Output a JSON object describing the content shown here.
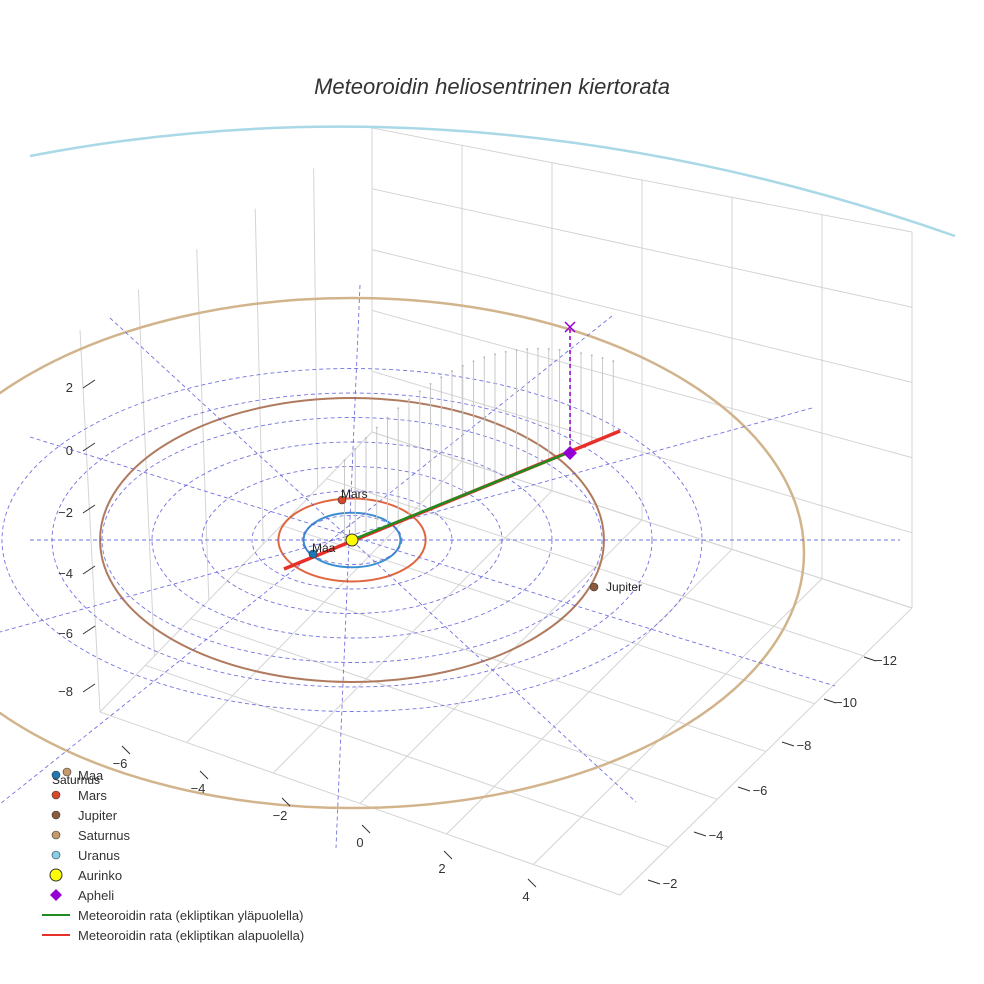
{
  "chart_data": {
    "type": "3d-scatter-line",
    "title": "Meteoroidin heliosentrinen kiertorata",
    "x_ticks": [
      -12,
      -10,
      -8,
      -6,
      -4,
      -2
    ],
    "y_ticks": [
      -6,
      -4,
      -2,
      0,
      2,
      4
    ],
    "z_ticks": [
      -8,
      -6,
      -4,
      -2,
      0,
      2
    ],
    "planets": [
      {
        "name": "Maa",
        "color": "#1f77b4",
        "orbit_radius_au": 1.0,
        "orbit_color": "#3b8fd0",
        "labeled": true
      },
      {
        "name": "Mars",
        "color": "#d9472b",
        "orbit_radius_au": 1.52,
        "orbit_color": "#e0663f",
        "labeled": true
      },
      {
        "name": "Jupiter",
        "color": "#8c5a3c",
        "orbit_radius_au": 5.2,
        "orbit_color": "#b07a5e",
        "labeled": true
      },
      {
        "name": "Saturnus",
        "color": "#c49a6c",
        "orbit_radius_au": 9.58,
        "orbit_color": "#d2b48c",
        "labeled": false
      },
      {
        "name": "Uranus",
        "color": "#87ceeb",
        "orbit_radius_au": 19.2,
        "orbit_color": "#a9d8e6",
        "labeled": false
      }
    ],
    "sun": {
      "name": "Aurinko",
      "color": "#ffff00"
    },
    "aphelion": {
      "name": "Apheli",
      "color": "#9400d3",
      "x": 5.2,
      "y": 0.0,
      "z": 0.0
    },
    "meteoroid_path": [
      {
        "name": "Meteoroidin rata (ekliptikan yläpuolella)",
        "color": "#1e8c1e"
      },
      {
        "name": "Meteoroidin rata (ekliptikan alapuolella)",
        "color": "#e8302a"
      }
    ]
  },
  "labels": {
    "maa": "Maa",
    "mars": "Mars",
    "jupiter": "Jupiter",
    "saturnus": "Saturnus"
  },
  "legend": [
    {
      "key": "maa",
      "label": "Maa",
      "symbol": "dot",
      "color": "#1f77b4"
    },
    {
      "key": "mars",
      "label": "Mars",
      "symbol": "dot",
      "color": "#d9472b"
    },
    {
      "key": "jupiter",
      "label": "Jupiter",
      "symbol": "dot",
      "color": "#8c5a3c"
    },
    {
      "key": "saturnus",
      "label": "Saturnus",
      "symbol": "dot",
      "color": "#c49a6c"
    },
    {
      "key": "uranus",
      "label": "Uranus",
      "symbol": "dot",
      "color": "#87ceeb"
    },
    {
      "key": "aurinko",
      "label": "Aurinko",
      "symbol": "bigdot",
      "color": "#ffff00"
    },
    {
      "key": "apheli",
      "label": "Apheli",
      "symbol": "diamond",
      "color": "#9400d3"
    },
    {
      "key": "rata-yla",
      "label": "Meteoroidin rata (ekliptikan yläpuolella)",
      "symbol": "line",
      "color": "#1e8c1e"
    },
    {
      "key": "rata-ala",
      "label": "Meteoroidin rata (ekliptikan alapuolella)",
      "symbol": "line",
      "color": "#e8302a"
    }
  ]
}
